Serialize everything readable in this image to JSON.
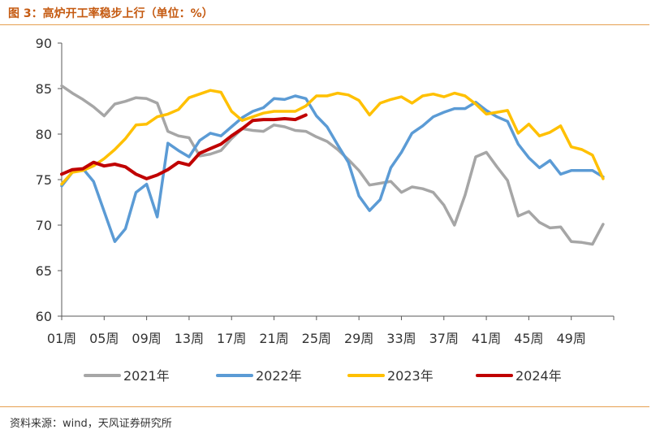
{
  "header": {
    "title": "图 3：高炉开工率稳步上行（单位：%）"
  },
  "footer": {
    "source": "资料来源：wind，天风证券研究所"
  },
  "chart_data": {
    "type": "line",
    "title": "高炉开工率稳步上行（单位：%）",
    "xlabel": "",
    "ylabel": "",
    "ylim": [
      60,
      90
    ],
    "yticks": [
      60,
      65,
      70,
      75,
      80,
      85,
      90
    ],
    "x_tick_labels": [
      "01周",
      "05周",
      "09周",
      "13周",
      "17周",
      "21周",
      "25周",
      "29周",
      "33周",
      "37周",
      "41周",
      "45周",
      "49周"
    ],
    "x_tick_weeks": [
      1,
      5,
      9,
      13,
      17,
      21,
      25,
      29,
      33,
      37,
      41,
      45,
      49
    ],
    "x_range": [
      1,
      53
    ],
    "grid": false,
    "legend_position": "bottom",
    "series": [
      {
        "name": "2021年",
        "color": "#a6a6a6",
        "values": [
          85.3,
          84.5,
          83.8,
          83,
          82,
          83.3,
          83.6,
          84,
          83.9,
          83.4,
          80.3,
          79.8,
          79.6,
          77.6,
          77.8,
          78.2,
          79.5,
          80.6,
          80.4,
          80.3,
          81,
          80.8,
          80.4,
          80.3,
          79.7,
          79.2,
          78.3,
          77.2,
          76,
          74.4,
          74.6,
          74.8,
          73.6,
          74.2,
          74,
          73.6,
          72.2,
          70,
          73.3,
          77.5,
          78,
          76.4,
          74.9,
          71,
          71.5,
          70.3,
          69.7,
          69.8,
          68.2,
          68.1,
          67.9,
          70.1
        ]
      },
      {
        "name": "2022年",
        "color": "#5b9bd5",
        "values": [
          74.3,
          75.8,
          76.2,
          74.8,
          71.5,
          68.2,
          69.6,
          73.6,
          74.5,
          70.9,
          79,
          78.2,
          77.5,
          79.3,
          80.1,
          79.8,
          80.8,
          81.8,
          82.5,
          82.9,
          83.9,
          83.8,
          84.2,
          83.9,
          82,
          80.8,
          78.8,
          76.9,
          73.2,
          71.6,
          72.8,
          76.3,
          78,
          80.1,
          80.9,
          81.9,
          82.4,
          82.8,
          82.8,
          83.5,
          82.6,
          81.9,
          81.4,
          78.9,
          77.4,
          76.3,
          77.1,
          75.6,
          76,
          76,
          76,
          75.3
        ]
      },
      {
        "name": "2023年",
        "color": "#ffc000",
        "values": [
          74.5,
          75.8,
          76,
          76.5,
          77.3,
          78.3,
          79.5,
          81,
          81.1,
          81.9,
          82.2,
          82.7,
          84,
          84.4,
          84.8,
          84.6,
          82.5,
          81.5,
          81.9,
          82.3,
          82.5,
          82.5,
          82.5,
          83.1,
          84.2,
          84.2,
          84.5,
          84.3,
          83.7,
          82.1,
          83.4,
          83.8,
          84.1,
          83.4,
          84.2,
          84.4,
          84.1,
          84.5,
          84.2,
          83.3,
          82.2,
          82.4,
          82.6,
          80.1,
          81.1,
          79.8,
          80.2,
          80.9,
          78.6,
          78.3,
          77.7,
          75.1
        ]
      },
      {
        "name": "2024年",
        "color": "#c00000",
        "values": [
          75.6,
          76.1,
          76.2,
          76.9,
          76.5,
          76.7,
          76.4,
          75.6,
          75.1,
          75.5,
          76.1,
          76.9,
          76.6,
          77.9,
          78.4,
          78.9,
          79.8,
          80.6,
          81.5,
          81.6,
          81.6,
          81.7,
          81.6,
          82.1
        ]
      }
    ]
  }
}
